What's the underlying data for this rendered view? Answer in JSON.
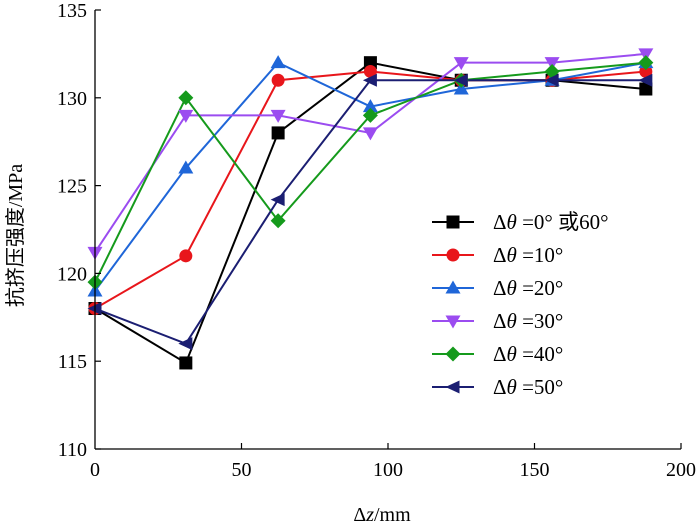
{
  "chart_data": {
    "type": "line",
    "title": "",
    "xlabel": "Δz/mm",
    "ylabel": "抗挤压强度/MPa",
    "xlim": [
      0,
      200
    ],
    "ylim": [
      110,
      135
    ],
    "xticks": [
      0,
      50,
      100,
      150,
      200
    ],
    "yticks": [
      110,
      115,
      120,
      125,
      130,
      135
    ],
    "x": [
      0,
      31,
      62.5,
      94,
      125,
      156,
      188
    ],
    "grid": false,
    "legend_position": "right-middle",
    "series": [
      {
        "name": "Δθ =0° 或60°",
        "marker": "square",
        "color": "#000000",
        "values": [
          118,
          114.9,
          128,
          132,
          131,
          131,
          130.5
        ]
      },
      {
        "name": "Δθ =10°",
        "marker": "circle",
        "color": "#e8161b",
        "values": [
          118,
          121,
          131,
          131.5,
          131,
          131,
          131.5
        ]
      },
      {
        "name": "Δθ =20°",
        "marker": "triangle-up",
        "color": "#1f66d8",
        "values": [
          119,
          126,
          132,
          129.5,
          130.5,
          131,
          132
        ]
      },
      {
        "name": "Δθ =30°",
        "marker": "triangle-down",
        "color": "#9b4cf0",
        "values": [
          121.2,
          129,
          129,
          128,
          132,
          132,
          132.5
        ]
      },
      {
        "name": "Δθ =40°",
        "marker": "diamond",
        "color": "#159a1c",
        "values": [
          119.5,
          130,
          123,
          129,
          131,
          131.5,
          132
        ]
      },
      {
        "name": "Δθ =50°",
        "marker": "triangle-left",
        "color": "#1b1e72",
        "values": [
          118,
          116,
          124.2,
          131,
          131,
          131,
          131
        ]
      }
    ]
  }
}
